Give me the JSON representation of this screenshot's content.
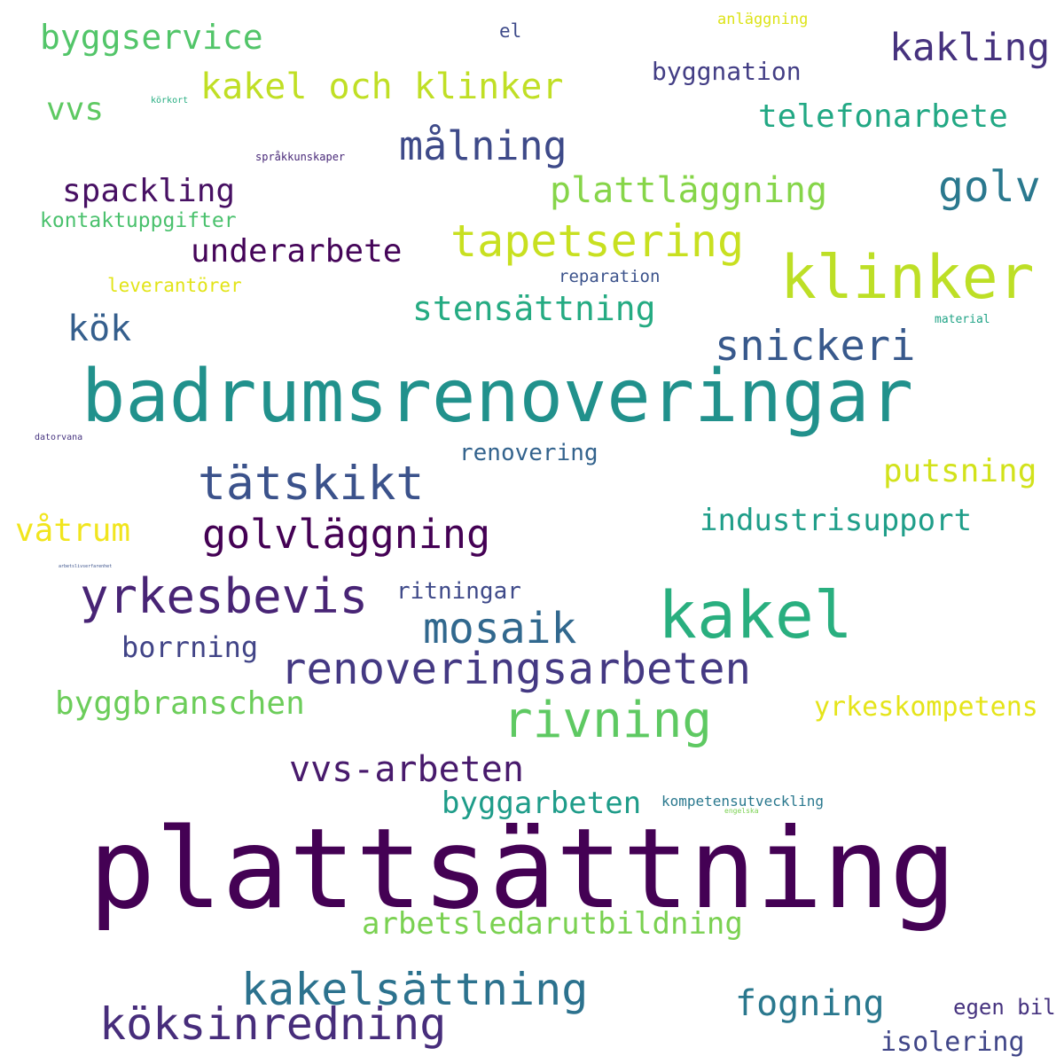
{
  "words": [
    {
      "text": "plattsättning",
      "color": "#440154"
    },
    {
      "text": "badrumsrenoveringar",
      "color": "#21918c"
    },
    {
      "text": "klinker",
      "color": "#bddf26"
    },
    {
      "text": "kakel",
      "color": "#29af7f"
    },
    {
      "text": "tapetsering",
      "color": "#c8e020"
    },
    {
      "text": "renoveringsarbeten",
      "color": "#443983"
    },
    {
      "text": "yrkesbevis",
      "color": "#482475"
    },
    {
      "text": "tätskikt",
      "color": "#3b528b"
    },
    {
      "text": "kakelsättning",
      "color": "#2c728e"
    },
    {
      "text": "köksinredning",
      "color": "#472d7b"
    },
    {
      "text": "rivning",
      "color": "#5ec962"
    },
    {
      "text": "snickeri",
      "color": "#38598c"
    },
    {
      "text": "golvläggning",
      "color": "#440154"
    },
    {
      "text": "målning",
      "color": "#3e4a89"
    },
    {
      "text": "mosaik",
      "color": "#31688e"
    },
    {
      "text": "golv",
      "color": "#2a788e"
    },
    {
      "text": "kakling",
      "color": "#46327e"
    },
    {
      "text": "plattläggning",
      "color": "#86d549"
    },
    {
      "text": "kakel och klinker",
      "color": "#c0df25"
    },
    {
      "text": "vvs-arbeten",
      "color": "#481a6c"
    },
    {
      "text": "fogning",
      "color": "#2a788e"
    },
    {
      "text": "byggservice",
      "color": "#52c569"
    },
    {
      "text": "stensättning",
      "color": "#25ab82"
    },
    {
      "text": "telefonarbete",
      "color": "#22a884"
    },
    {
      "text": "underarbete",
      "color": "#450559"
    },
    {
      "text": "arbetsledarutbildning",
      "color": "#7ad151"
    },
    {
      "text": "byggbranschen",
      "color": "#6ccd5a"
    },
    {
      "text": "industrisupport",
      "color": "#1f9e89"
    },
    {
      "text": "byggarbeten",
      "color": "#1e9c89"
    },
    {
      "text": "spackling",
      "color": "#471063"
    },
    {
      "text": "putsning",
      "color": "#d2e21b"
    },
    {
      "text": "kök",
      "color": "#355f8d"
    },
    {
      "text": "våtrum",
      "color": "#f1e51d"
    },
    {
      "text": "vvs",
      "color": "#5ec962"
    },
    {
      "text": "yrkeskompetens",
      "color": "#e5e419"
    },
    {
      "text": "borrning",
      "color": "#414487"
    },
    {
      "text": "isolering",
      "color": "#404688"
    },
    {
      "text": "byggnation",
      "color": "#433e85"
    },
    {
      "text": "ritningar",
      "color": "#3e4989"
    },
    {
      "text": "renovering",
      "color": "#33638d"
    },
    {
      "text": "egen bil",
      "color": "#46337f"
    },
    {
      "text": "kontaktuppgifter",
      "color": "#4ac16d"
    },
    {
      "text": "leverantörer",
      "color": "#e2e418"
    },
    {
      "text": "reparation",
      "color": "#3b528b"
    },
    {
      "text": "el",
      "color": "#3e4a89"
    },
    {
      "text": "anläggning",
      "color": "#dde318"
    },
    {
      "text": "kompetensutveckling",
      "color": "#2a788e"
    },
    {
      "text": "språkkunskaper",
      "color": "#482878"
    },
    {
      "text": "material",
      "color": "#20a386"
    },
    {
      "text": "körkort",
      "color": "#26ad81"
    },
    {
      "text": "datorvana",
      "color": "#46337f"
    },
    {
      "text": "engelska",
      "color": "#7ad151"
    },
    {
      "text": "arbetslivserfarenhet",
      "color": "#3b528b"
    }
  ]
}
